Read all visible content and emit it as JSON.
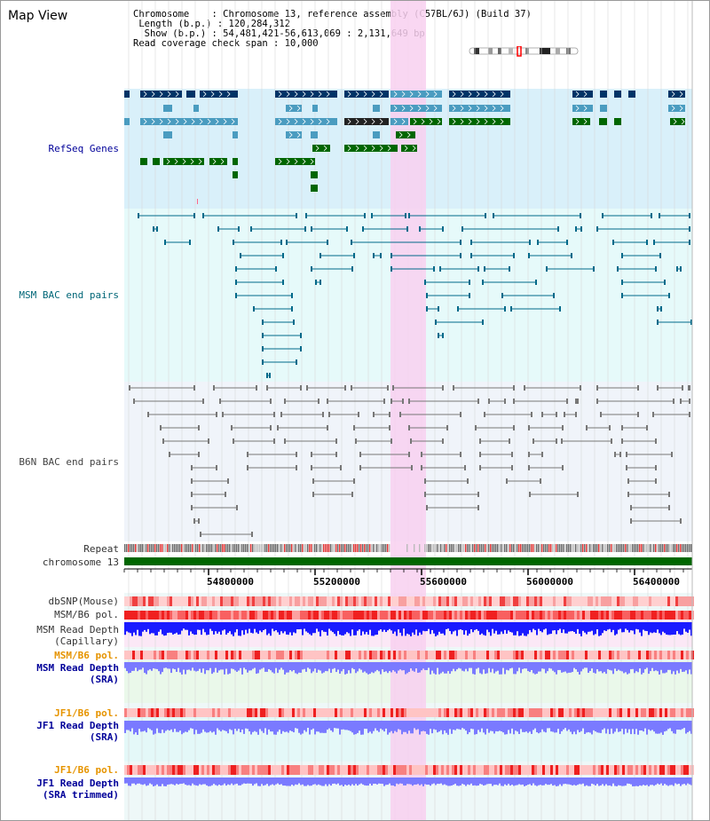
{
  "title": "Map View",
  "info": {
    "chromosome_key": "Chromosome",
    "chromosome_value": "Chromosome 13, reference assembly (C57BL/6J) (Build 37)",
    "length_key": "Length (b.p.)",
    "length_value": "120,284,312",
    "show_key": "Show (b.p.)",
    "show_value": "54,481,421-56,613,069 : 2,131,649 bp",
    "coverage_key": "Read coverage check span",
    "coverage_value": "10,000"
  },
  "tracks": {
    "refseq": "RefSeq Genes",
    "msm_bac": "MSM BAC end pairs",
    "b6n_bac": "B6N BAC end pairs",
    "repeat": "Repeat",
    "chromosome": "chromosome 13",
    "dbsnp": "dbSNP(Mouse)",
    "msm_b6_pol_1": "MSM/B6 pol.",
    "msm_depth_cap_1": "MSM Read Depth",
    "msm_depth_cap_2": "(Capillary)",
    "msm_b6_pol_2": "MSM/B6 pol.",
    "msm_depth_sra_1": "MSM Read Depth",
    "msm_depth_sra_2": "(SRA)",
    "jf1_pol_1": "JF1/B6 pol.",
    "jf1_depth_sra_1": "JF1 Read Depth",
    "jf1_depth_sra_2": "(SRA)",
    "jf1_pol_2": "JF1/B6 pol.",
    "jf1_depth_trim_1": "JF1 Read Depth",
    "jf1_depth_trim_2": "(SRA trimmed)"
  },
  "axis_ticks": [
    "54800000",
    "55200000",
    "55600000",
    "56000000",
    "56400000"
  ],
  "colors": {
    "refseq_bg": "#d9f0fa",
    "msm_bac_bg": "#e6fafa",
    "b6n_bg": "#f0f4fa",
    "highlight": "#f8d0f0",
    "gene_dark": "#003366",
    "gene_mid": "#4a9cc0",
    "gene_green": "#006600",
    "msm_line": "#006a8a",
    "b6n_line": "#777777",
    "chrom_green": "#006600",
    "depth_blue": "#1a1aff",
    "depth_light": "#7a7aff"
  }
}
